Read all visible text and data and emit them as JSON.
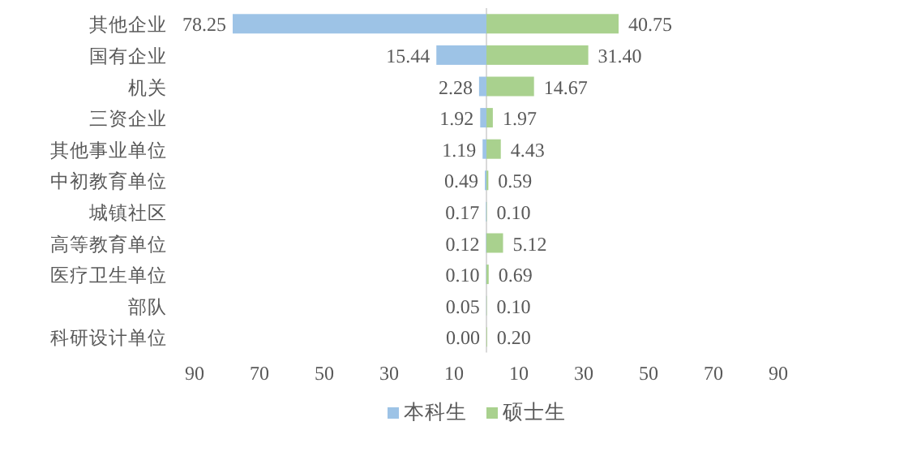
{
  "chart_data": {
    "type": "bar",
    "orientation": "horizontal",
    "categories": [
      "其他企业",
      "国有企业",
      "机关",
      "三资企业",
      "其他事业单位",
      "中初教育单位",
      "城镇社区",
      "高等教育单位",
      "医疗卫生单位",
      "部队",
      "科研设计单位"
    ],
    "series": [
      {
        "name": "本科生",
        "color": "#9dc3e6",
        "values": [
          78.25,
          15.44,
          2.28,
          1.92,
          1.19,
          0.49,
          0.17,
          0.12,
          0.1,
          0.05,
          0.0
        ],
        "base": [
          -78.25,
          -15.44,
          -2.28,
          -1.92,
          -1.19,
          -0.49,
          -0.17,
          -0.12,
          -0.1,
          -0.05,
          null
        ],
        "value_labels": [
          "78.25",
          "15.44",
          "2.28",
          "1.92",
          "1.19",
          "0.49",
          "0.17",
          "0.12",
          "0.10",
          "0.05",
          "0.00"
        ]
      },
      {
        "name": "硕士生",
        "color": "#a9d18e",
        "values": [
          40.75,
          31.4,
          14.67,
          1.97,
          4.43,
          0.59,
          0.1,
          5.12,
          0.69,
          0.1,
          0.2
        ],
        "value_labels": [
          "40.75",
          "31.40",
          "14.67",
          "1.97",
          "4.43",
          "0.59",
          "0.10",
          "5.12",
          "0.69",
          "0.10",
          "0.20"
        ]
      }
    ],
    "xlim": [
      -90,
      90
    ],
    "xticks": [
      {
        "value": -90,
        "label": "90"
      },
      {
        "value": -70,
        "label": "70"
      },
      {
        "value": -50,
        "label": "50"
      },
      {
        "value": -30,
        "label": "30"
      },
      {
        "value": -10,
        "label": "10"
      },
      10,
      30,
      50,
      70,
      90
    ],
    "grid": false,
    "legend": "bottom"
  }
}
